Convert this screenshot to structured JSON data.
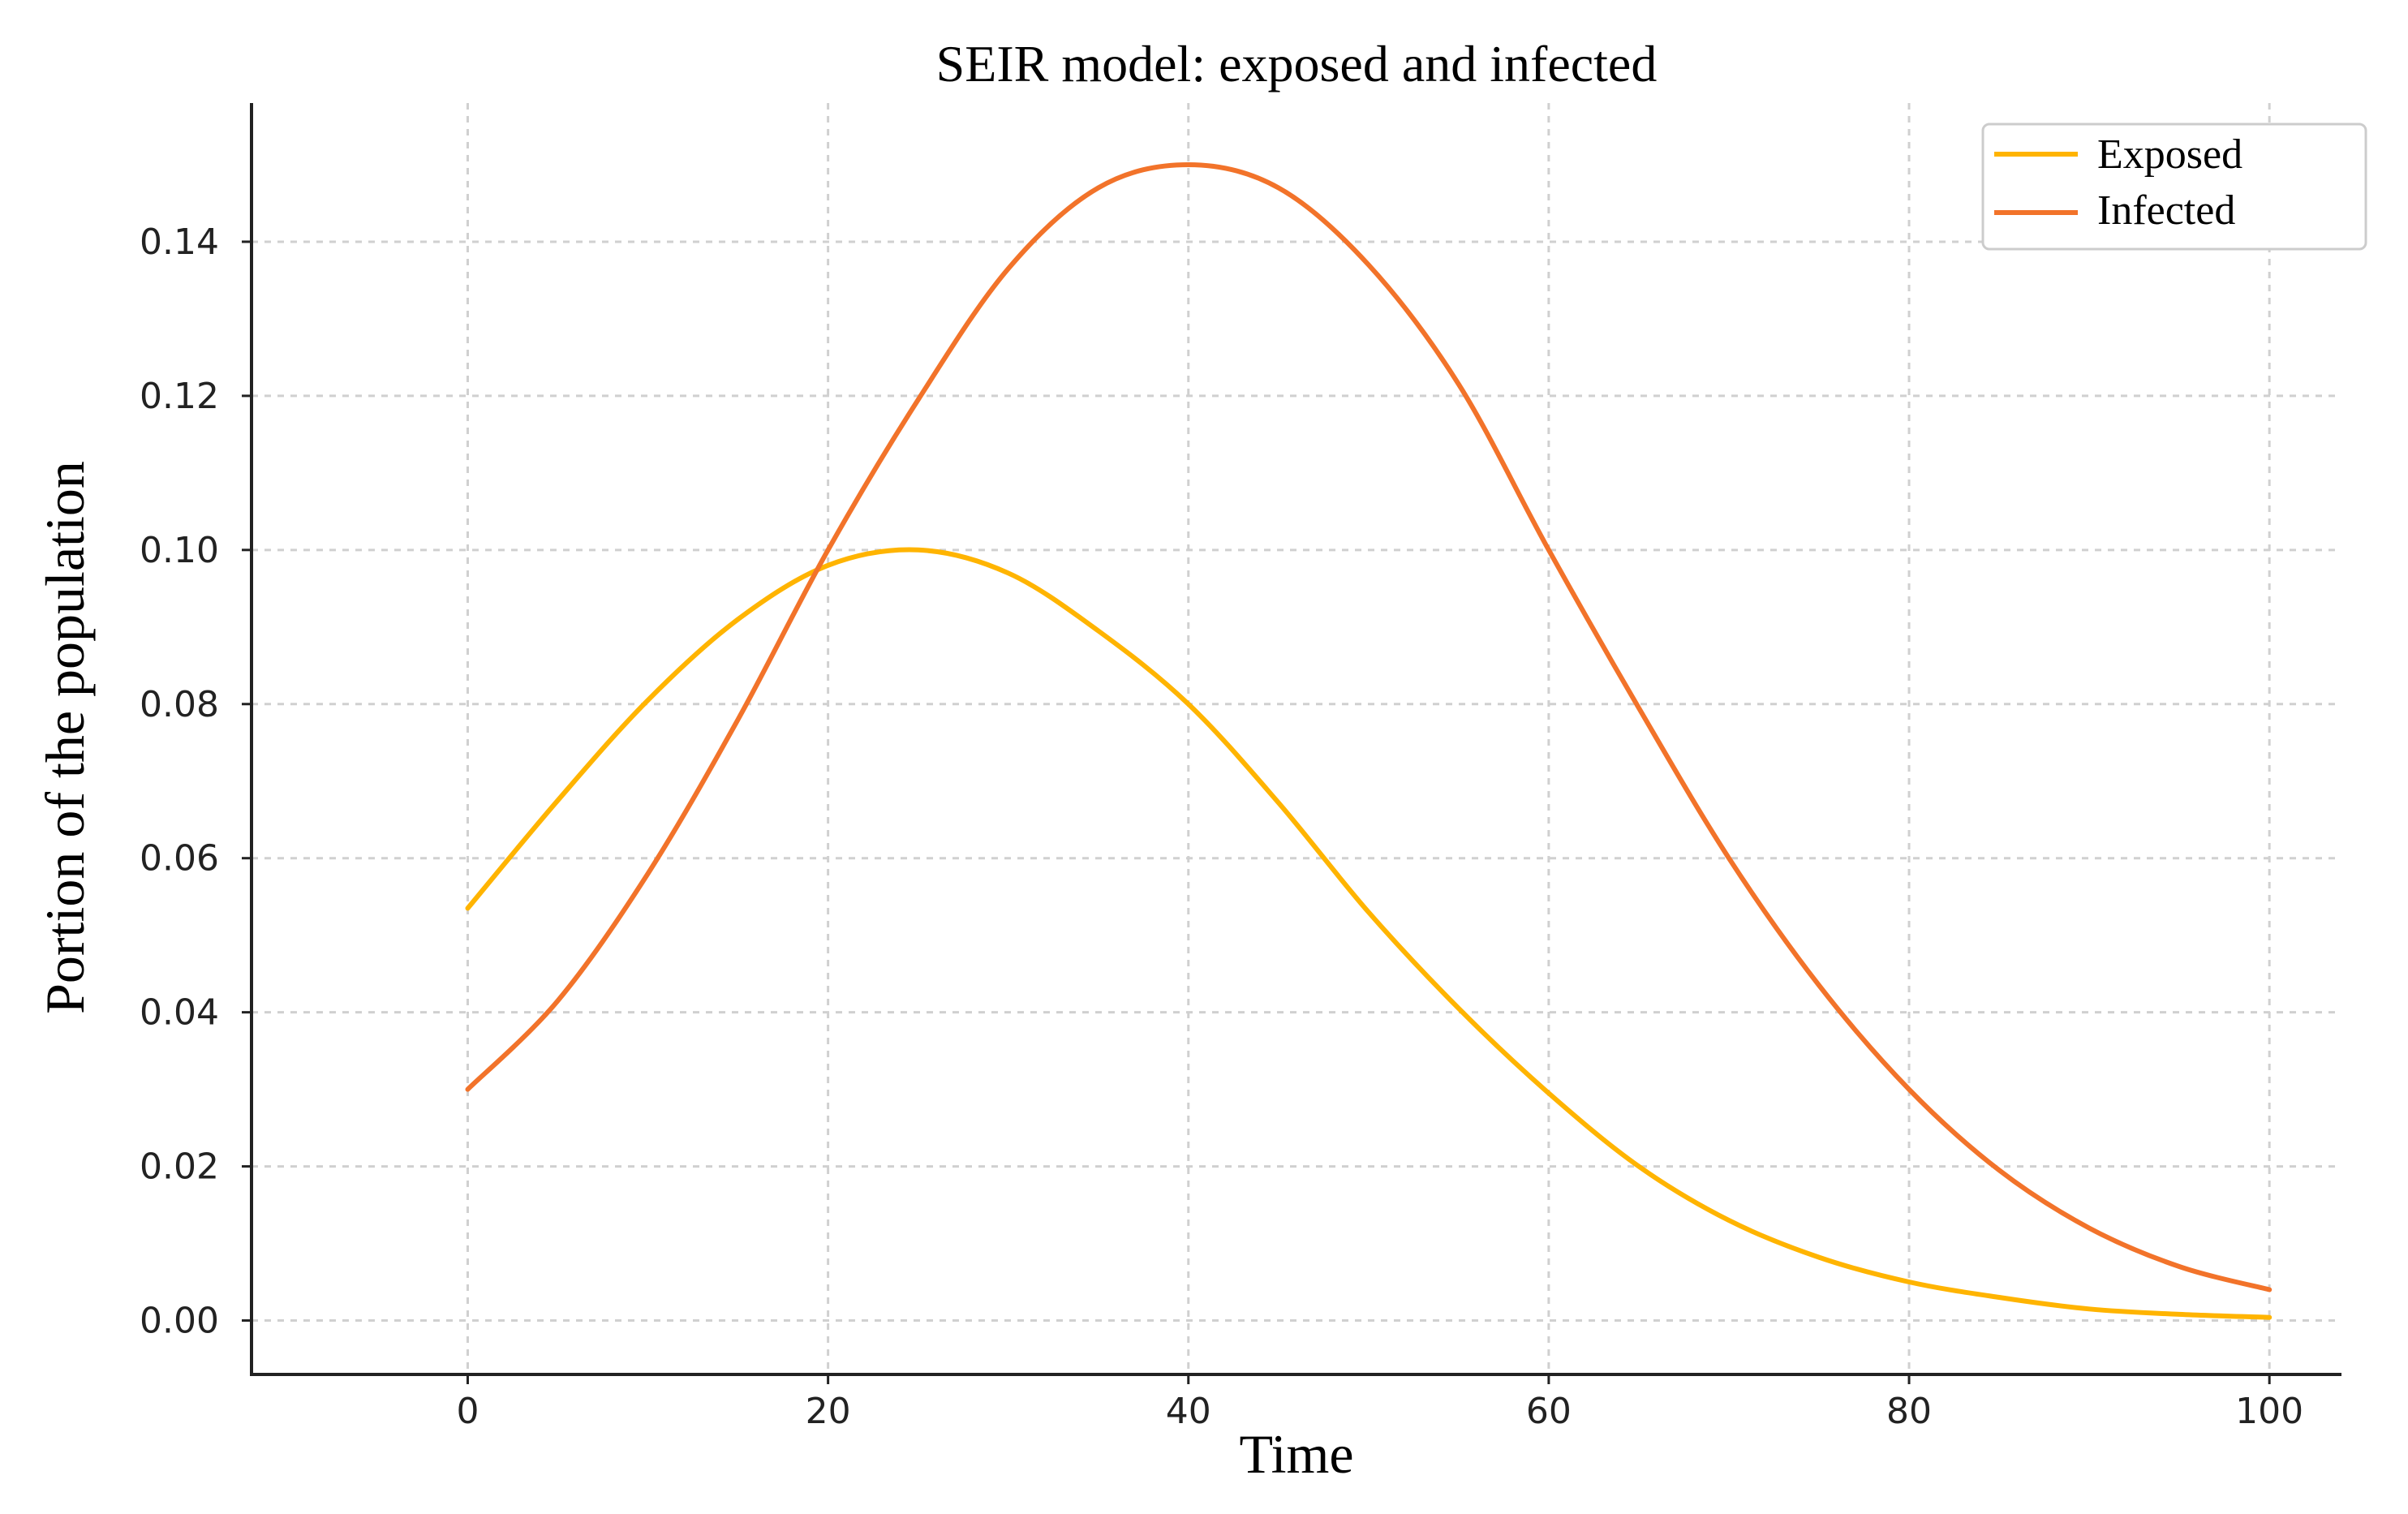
{
  "chart_data": {
    "type": "line",
    "title": "SEIR model: exposed and infected",
    "xlabel": "Time",
    "ylabel": "Portion of the population",
    "xlim": [
      -12,
      104
    ],
    "ylim": [
      -0.007,
      0.158
    ],
    "grid": true,
    "legend_position": "top-right",
    "x_ticks": [
      0,
      20,
      40,
      60,
      80,
      100
    ],
    "x_tick_labels": [
      "0",
      "20",
      "40",
      "60",
      "80",
      "100"
    ],
    "y_ticks": [
      0.0,
      0.02,
      0.04,
      0.06,
      0.08,
      0.1,
      0.12,
      0.14
    ],
    "y_tick_labels": [
      "0.00",
      "0.02",
      "0.04",
      "0.06",
      "0.08",
      "0.10",
      "0.12",
      "0.14"
    ],
    "x": [
      0,
      5,
      10,
      15,
      20,
      25,
      30,
      35,
      40,
      45,
      50,
      55,
      60,
      65,
      70,
      75,
      80,
      85,
      90,
      95,
      100
    ],
    "series": [
      {
        "name": "Exposed",
        "color": "#FFB400",
        "values": [
          0.0535,
          0.0675,
          0.0805,
          0.091,
          0.098,
          0.1,
          0.097,
          0.0895,
          0.08,
          0.0672,
          0.053,
          0.0405,
          0.0295,
          0.02,
          0.013,
          0.0082,
          0.005,
          0.003,
          0.0015,
          0.0008,
          0.0004
        ]
      },
      {
        "name": "Infected",
        "color": "#F2732A",
        "values": [
          0.03,
          0.0415,
          0.058,
          0.078,
          0.1,
          0.1195,
          0.1365,
          0.147,
          0.15,
          0.147,
          0.137,
          0.1215,
          0.1,
          0.0795,
          0.06,
          0.0435,
          0.03,
          0.0195,
          0.012,
          0.007,
          0.004
        ]
      }
    ]
  }
}
